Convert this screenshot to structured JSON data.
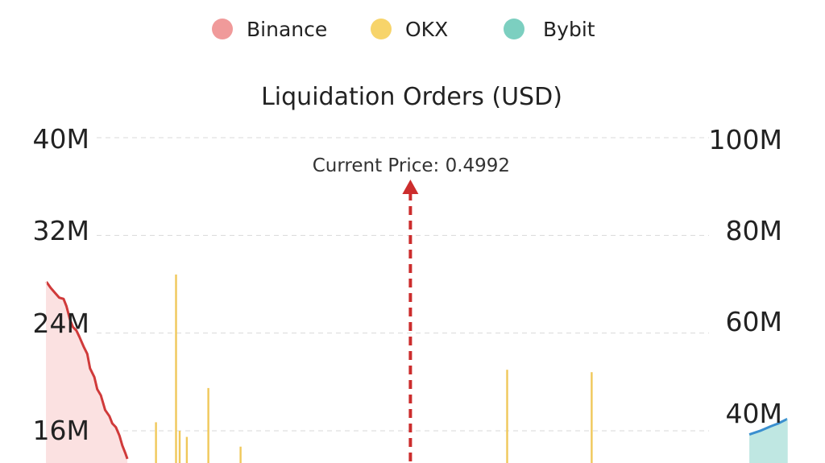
{
  "chart_data": {
    "type": "area",
    "title": "Liquidation Orders (USD)",
    "legend": {
      "placement": "top-center",
      "items": [
        {
          "name": "Binance",
          "color": "#f09a9a"
        },
        {
          "name": "OKX",
          "color": "#f7d46a"
        },
        {
          "name": "Bybit",
          "color": "#7ccfc0"
        }
      ]
    },
    "y_left": {
      "ticks": [
        "40M",
        "32M",
        "24M",
        "16M"
      ],
      "ylim": [
        0,
        40000000
      ]
    },
    "y_right": {
      "ticks": [
        "100M",
        "80M",
        "60M",
        "40M"
      ],
      "ylim": [
        0,
        100000000
      ]
    },
    "x_range": [
      0.448,
      0.552
    ],
    "grid": true,
    "current_price": {
      "label": "Current Price: 0.4992",
      "value": 0.4992,
      "color": "#cc2d2d"
    },
    "series": [
      {
        "name": "Binance",
        "axis": "left",
        "kind": "area",
        "line_color": "#d03a3a",
        "fill_color": "#fbe1e1",
        "x": [
          0.4484,
          0.449,
          0.4496,
          0.4502,
          0.4508,
          0.4512,
          0.4517,
          0.4521,
          0.4526,
          0.453,
          0.4536,
          0.4541,
          0.4545,
          0.4551,
          0.4555,
          0.456,
          0.4566,
          0.4572,
          0.4576,
          0.4581,
          0.4586,
          0.459,
          0.4594,
          0.4597
        ],
        "y": [
          28200000,
          27700000,
          27300000,
          26900000,
          26800000,
          26200000,
          25100000,
          24500000,
          24200000,
          23700000,
          22900000,
          22300000,
          21100000,
          20400000,
          19400000,
          18900000,
          17700000,
          17200000,
          16600000,
          16300000,
          15600000,
          14800000,
          14200000,
          13700000
        ]
      },
      {
        "name": "OKX",
        "axis": "left",
        "kind": "bars",
        "color": "#f0c85a",
        "x": [
          0.4637,
          0.4665,
          0.467,
          0.468,
          0.471,
          0.4755,
          0.5127,
          0.5245
        ],
        "y": [
          16700000,
          28800000,
          16000000,
          15500000,
          19500000,
          14700000,
          21000000,
          20800000
        ]
      },
      {
        "name": "Bybit",
        "axis": "right",
        "kind": "area",
        "line_color": "#3a8fcf",
        "fill_color": "#bfe7e2",
        "x": [
          0.5465,
          0.548,
          0.5495,
          0.5505,
          0.5518
        ],
        "y": [
          35500000,
          36300000,
          37300000,
          37900000,
          38900000
        ]
      }
    ]
  }
}
